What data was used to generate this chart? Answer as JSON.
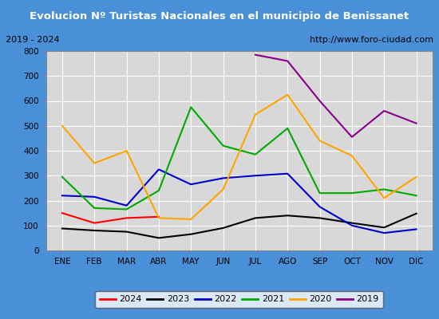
{
  "title": "Evolucion Nº Turistas Nacionales en el municipio de Benissanet",
  "subtitle_left": "2019 - 2024",
  "subtitle_right": "http://www.foro-ciudad.com",
  "months": [
    "ENE",
    "FEB",
    "MAR",
    "ABR",
    "MAY",
    "JUN",
    "JUL",
    "AGO",
    "SEP",
    "OCT",
    "NOV",
    "DIC"
  ],
  "series": {
    "2024": [
      150,
      110,
      130,
      135,
      null,
      null,
      null,
      null,
      null,
      null,
      null,
      null
    ],
    "2023": [
      88,
      80,
      75,
      50,
      65,
      90,
      130,
      140,
      130,
      110,
      92,
      148
    ],
    "2022": [
      220,
      215,
      180,
      325,
      265,
      290,
      300,
      308,
      175,
      100,
      70,
      85
    ],
    "2021": [
      295,
      170,
      165,
      240,
      575,
      420,
      385,
      490,
      230,
      230,
      245,
      220
    ],
    "2020": [
      500,
      350,
      400,
      130,
      125,
      245,
      545,
      625,
      440,
      380,
      210,
      295
    ],
    "2019": [
      null,
      null,
      null,
      null,
      null,
      null,
      785,
      760,
      600,
      455,
      560,
      510
    ]
  },
  "colors": {
    "2024": "#ff0000",
    "2023": "#000000",
    "2022": "#0000cc",
    "2021": "#00aa00",
    "2020": "#ffa500",
    "2019": "#880088"
  },
  "ylim": [
    0,
    800
  ],
  "yticks": [
    0,
    100,
    200,
    300,
    400,
    500,
    600,
    700,
    800
  ],
  "title_bg": "#4a90d9",
  "title_color": "#ffffff",
  "subtitle_bg": "#e8e8e8",
  "plot_bg": "#d8d8d8",
  "grid_color": "#ffffff",
  "border_color": "#4a90d9",
  "fig_bg": "#4a90d9"
}
